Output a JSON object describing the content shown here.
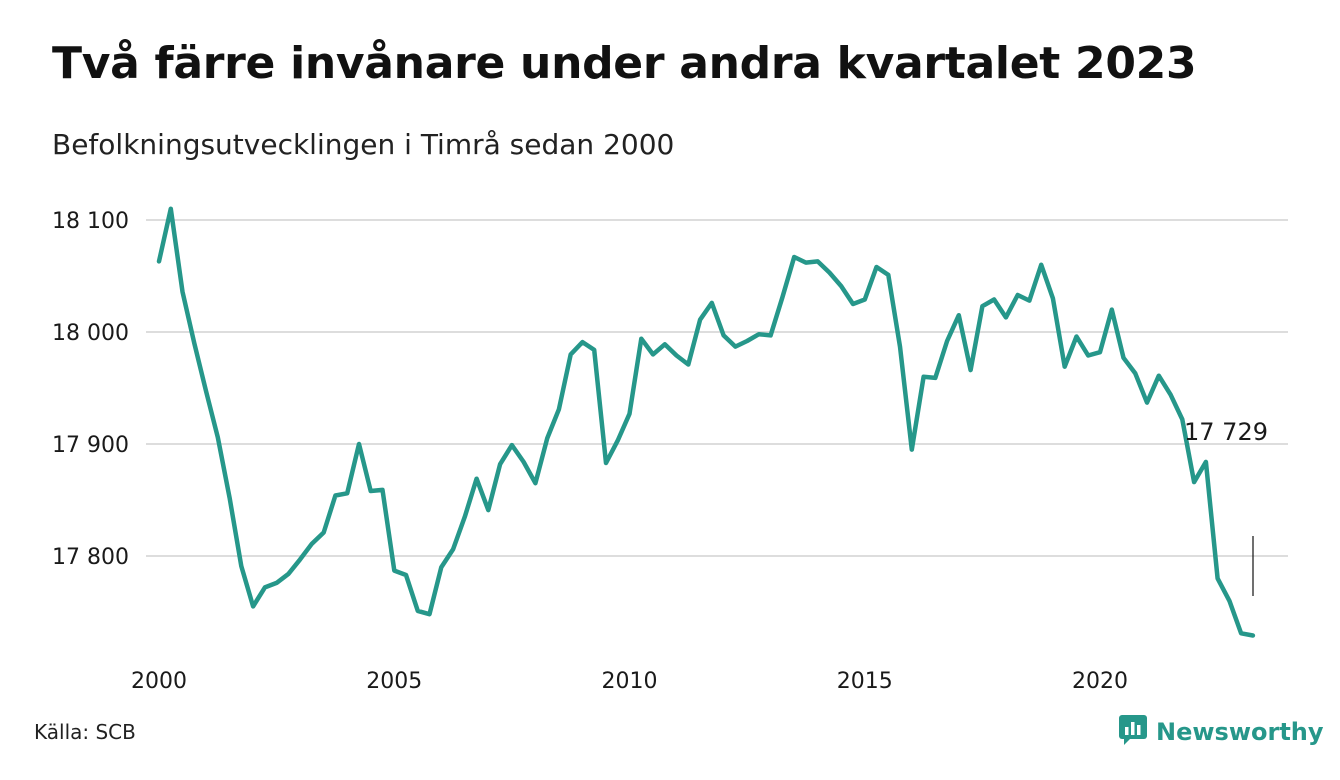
{
  "header": {
    "title": "Två färre invånare under andra kvartalet 2023",
    "subtitle": "Befolkningsutvecklingen i Timrå sedan 2000"
  },
  "footer": {
    "source": "Källa: SCB",
    "brand": "Newsworthy",
    "brand_icon": "bar-chart-speech-bubble-icon"
  },
  "colors": {
    "line": "#26978a",
    "grid": "#dddddd",
    "brand": "#26978a"
  },
  "chart_data": {
    "type": "line",
    "title": "Två färre invånare under andra kvartalet 2023",
    "subtitle": "Befolkningsutvecklingen i Timrå sedan 2000",
    "xlim": [
      2000,
      2024
    ],
    "ylim": [
      17720,
      18115
    ],
    "x_ticks": [
      2000,
      2005,
      2010,
      2015,
      2020
    ],
    "x_tick_labels": [
      "2000",
      "2005",
      "2010",
      "2015",
      "2020"
    ],
    "y_ticks": [
      17800,
      17900,
      18000,
      18100
    ],
    "y_tick_labels": [
      "17 800",
      "17 900",
      "18 000",
      "18 100"
    ],
    "grid": "horizontal",
    "annotation": {
      "label": "17 729"
    },
    "series": [
      {
        "x": [
          "2000Q1",
          "2000Q2",
          "2000Q3",
          "2000Q4",
          "2001Q1",
          "2001Q2",
          "2001Q3",
          "2001Q4",
          "2002Q1",
          "2002Q2",
          "2002Q3",
          "2002Q4",
          "2003Q1",
          "2003Q2",
          "2003Q3",
          "2003Q4",
          "2004Q1",
          "2004Q2",
          "2004Q3",
          "2004Q4",
          "2005Q1",
          "2005Q2",
          "2005Q3",
          "2005Q4",
          "2006Q1",
          "2006Q2",
          "2006Q3",
          "2006Q4",
          "2007Q1",
          "2007Q2",
          "2007Q3",
          "2007Q4",
          "2008Q1",
          "2008Q2",
          "2008Q3",
          "2008Q4",
          "2009Q1",
          "2009Q2",
          "2009Q3",
          "2009Q4",
          "2010Q1",
          "2010Q2",
          "2010Q3",
          "2010Q4",
          "2011Q1",
          "2011Q2",
          "2011Q3",
          "2011Q4",
          "2012Q1",
          "2012Q2",
          "2012Q3",
          "2012Q4",
          "2013Q1",
          "2013Q2",
          "2013Q3",
          "2013Q4",
          "2014Q1",
          "2014Q2",
          "2014Q3",
          "2014Q4",
          "2015Q1",
          "2015Q2",
          "2015Q3",
          "2015Q4",
          "2016Q1",
          "2016Q2",
          "2016Q3",
          "2016Q4",
          "2017Q1",
          "2017Q2",
          "2017Q3",
          "2017Q4",
          "2018Q1",
          "2018Q2",
          "2018Q3",
          "2018Q4",
          "2019Q1",
          "2019Q2",
          "2019Q3",
          "2019Q4",
          "2020Q1",
          "2020Q2",
          "2020Q3",
          "2020Q4",
          "2021Q1",
          "2021Q2",
          "2021Q3",
          "2021Q4",
          "2022Q1",
          "2022Q2",
          "2022Q3",
          "2022Q4",
          "2023Q1",
          "2023Q2"
        ],
        "values": [
          18063,
          18110,
          18036,
          17990,
          17947,
          17906,
          17852,
          17791,
          17755,
          17772,
          17776,
          17784,
          17797,
          17811,
          17821,
          17854,
          17856,
          17900,
          17858,
          17859,
          17787,
          17783,
          17751,
          17748,
          17790,
          17806,
          17835,
          17869,
          17841,
          17882,
          17899,
          17884,
          17865,
          17905,
          17931,
          17980,
          17991,
          17984,
          17883,
          17903,
          17927,
          17994,
          17980,
          17989,
          17979,
          17971,
          18011,
          18026,
          17997,
          17987,
          17992,
          17998,
          17997,
          18031,
          18067,
          18062,
          18063,
          18053,
          18041,
          18025,
          18029,
          18058,
          18051,
          17987,
          17895,
          17960,
          17959,
          17992,
          18015,
          17966,
          18023,
          18029,
          18013,
          18033,
          18028,
          18060,
          18030,
          17969,
          17996,
          17979,
          17982,
          18020,
          17977,
          17963,
          17937,
          17961,
          17944,
          17922,
          17866,
          17884,
          17780,
          17760,
          17731,
          17729
        ]
      }
    ]
  }
}
